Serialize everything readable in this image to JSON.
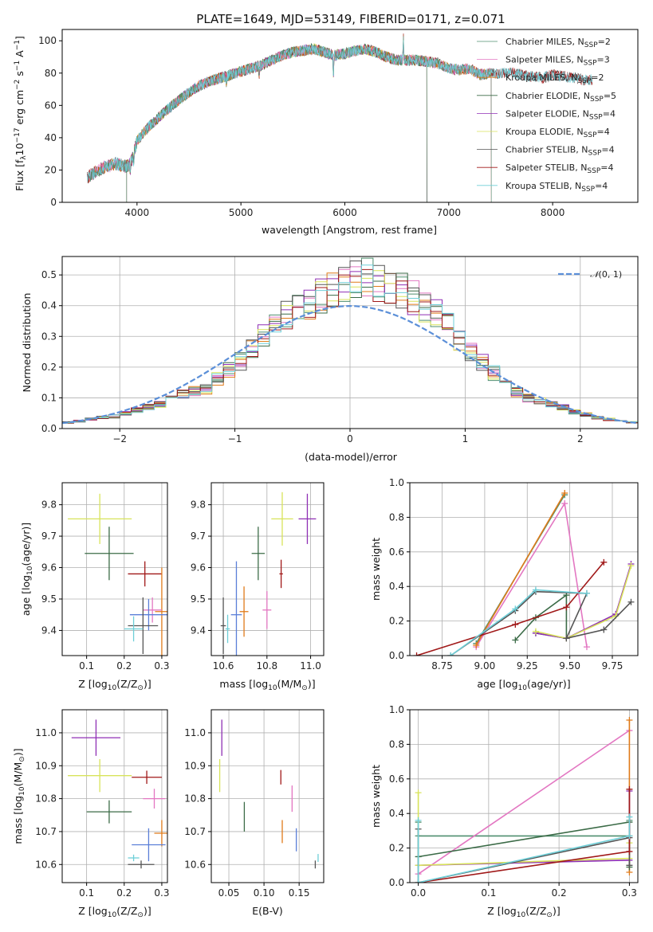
{
  "figure_title": "PLATE=1649, MJD=53149, FIBERID=0171, z=0.071",
  "colors": {
    "Chabrier MILES": "#4f8f6f",
    "Salpeter MILES": "#e377c2",
    "Kroupa MILES": "#e07b1a",
    "Chabrier ELODIE": "#3b6b47",
    "Salpeter ELODIE": "#8f2fb5",
    "Kroupa ELODIE": "#d8e35a",
    "Chabrier STELIB": "#555555",
    "Salpeter STELIB": "#a01818",
    "Kroupa STELIB": "#6ecfd8",
    "Extra": "#5b7fd8",
    "normal_curve": "#5b8fd8"
  },
  "chart_data": [
    {
      "id": "spectrum",
      "type": "line",
      "title": "PLATE=1649, MJD=53149, FIBERID=0171, z=0.071",
      "xlabel": "wavelength [Angstrom, rest frame]",
      "ylabel_parts": [
        "Flux [f",
        "λ",
        "10",
        "−17",
        " erg cm",
        "−2",
        " s",
        "−1",
        " A",
        "−1",
        "]"
      ],
      "xlim": [
        3280,
        8820
      ],
      "ylim": [
        0,
        107
      ],
      "xticks": [
        4000,
        5000,
        6000,
        7000,
        8000
      ],
      "yticks": [
        0,
        20,
        40,
        60,
        80,
        100
      ],
      "legend_position": "top-right",
      "continuum": {
        "x": [
          3520,
          3600,
          3700,
          3800,
          3900,
          3950,
          4000,
          4100,
          4200,
          4300,
          4400,
          4500,
          4600,
          4700,
          4800,
          4900,
          5000,
          5100,
          5200,
          5300,
          5400,
          5500,
          5600,
          5700,
          5800,
          5900,
          6000,
          6100,
          6200,
          6300,
          6400,
          6500,
          6600,
          6700,
          6800,
          6900,
          7000,
          7100,
          7200,
          7300,
          7400,
          7500,
          7600,
          7700,
          7800,
          7900,
          8000,
          8100,
          8200,
          8300,
          8380
        ],
        "y": [
          15,
          19,
          22,
          24,
          22,
          26,
          38,
          46,
          52,
          58,
          63,
          68,
          72,
          75,
          77,
          79,
          81,
          83,
          85,
          88,
          91,
          93,
          94,
          95,
          93,
          91,
          92,
          94,
          95,
          93,
          90,
          88,
          88,
          88,
          87,
          86,
          83,
          82,
          83,
          79,
          80,
          80,
          80,
          79,
          78,
          77,
          79,
          78,
          77,
          76,
          76
        ]
      },
      "features": [
        {
          "x": 5890,
          "depth": 14
        },
        {
          "x": 5175,
          "depth": 6
        },
        {
          "x": 4861,
          "depth": 4
        },
        {
          "x": 6563,
          "height": 14
        },
        {
          "x": 3934,
          "depth": 6
        },
        {
          "x": 3968,
          "depth": 5
        }
      ],
      "series": [
        {
          "name": "Chabrier MILES",
          "nssp": "2"
        },
        {
          "name": "Salpeter MILES",
          "nssp": "3"
        },
        {
          "name": "Kroupa MILES",
          "nssp": "2"
        },
        {
          "name": "Chabrier ELODIE",
          "nssp": "5"
        },
        {
          "name": "Salpeter ELODIE",
          "nssp": "4"
        },
        {
          "name": "Kroupa ELODIE",
          "nssp": "4"
        },
        {
          "name": "Chabrier STELIB",
          "nssp": "4"
        },
        {
          "name": "Salpeter STELIB",
          "nssp": "4"
        },
        {
          "name": "Kroupa STELIB",
          "nssp": "4"
        }
      ],
      "series_ranges": {
        "Chabrier MILES": [
          3540,
          7410
        ],
        "Salpeter MILES": [
          3540,
          7410
        ],
        "Kroupa MILES": [
          3540,
          7410
        ],
        "Chabrier ELODIE": [
          3900,
          6790
        ],
        "Salpeter ELODIE": [
          3900,
          6790
        ],
        "Kroupa ELODIE": [
          3900,
          6790
        ],
        "Chabrier STELIB": [
          3520,
          8380
        ],
        "Salpeter STELIB": [
          3520,
          8380
        ],
        "Kroupa STELIB": [
          3520,
          8380
        ]
      }
    },
    {
      "id": "residuals",
      "type": "line",
      "xlabel": "(data-model)/error",
      "ylabel": "Normed distribution",
      "xlim": [
        -2.5,
        2.5
      ],
      "ylim": [
        0,
        0.56
      ],
      "xticks": [
        -2,
        -1,
        0,
        1,
        2
      ],
      "yticks": [
        0.0,
        0.1,
        0.2,
        0.3,
        0.4,
        0.5
      ],
      "grid": true,
      "legend_position": "top-right",
      "normal_label_parts": [
        "𝒩",
        "(0, 1)"
      ],
      "bin_edges_start": -2.5,
      "bin_width": 0.1,
      "hist_envelope": [
        0.02,
        0.025,
        0.03,
        0.035,
        0.04,
        0.05,
        0.06,
        0.07,
        0.08,
        0.1,
        0.11,
        0.12,
        0.13,
        0.16,
        0.19,
        0.22,
        0.26,
        0.3,
        0.33,
        0.37,
        0.4,
        0.41,
        0.43,
        0.45,
        0.46,
        0.48,
        0.49,
        0.48,
        0.46,
        0.45,
        0.43,
        0.4,
        0.37,
        0.33,
        0.29,
        0.25,
        0.22,
        0.18,
        0.15,
        0.12,
        0.1,
        0.09,
        0.08,
        0.07,
        0.055,
        0.045,
        0.035,
        0.03,
        0.025,
        0.02
      ]
    },
    {
      "id": "age_vs_Z",
      "type": "scatter",
      "xlabel_parts": [
        "Z [log",
        "10",
        "(Z/Z",
        "⊙",
        ")]"
      ],
      "ylabel_parts": [
        "age  [log",
        "10",
        "(age/yr)]"
      ],
      "xlim": [
        0.035,
        0.315
      ],
      "ylim": [
        9.32,
        9.87
      ],
      "xticks": [
        0.1,
        0.2,
        0.3
      ],
      "yticks": [
        9.4,
        9.5,
        9.6,
        9.7,
        9.8
      ],
      "points": [
        {
          "s": "Kroupa ELODIE",
          "x": 0.135,
          "y": 9.755,
          "xerr": 0.085,
          "yerr": 0.08
        },
        {
          "s": "Chabrier ELODIE",
          "x": 0.16,
          "y": 9.645,
          "xerr": 0.065,
          "yerr": 0.085
        },
        {
          "s": "Salpeter STELIB",
          "x": 0.255,
          "y": 9.58,
          "xerr": 0.045,
          "yerr": 0.04
        },
        {
          "s": "Kroupa MILES",
          "x": 0.3,
          "y": 9.46,
          "xerr": 0.018,
          "yerr": 0.14
        },
        {
          "s": "Salpeter MILES",
          "x": 0.275,
          "y": 9.465,
          "xerr": 0.025,
          "yerr": 0.04
        },
        {
          "s": "Extra",
          "x": 0.265,
          "y": 9.45,
          "xerr": 0.05,
          "yerr": 0.05
        },
        {
          "s": "Chabrier STELIB",
          "x": 0.25,
          "y": 9.415,
          "xerr": 0.04,
          "yerr": 0.09
        },
        {
          "s": "Kroupa STELIB",
          "x": 0.225,
          "y": 9.405,
          "xerr": 0.025,
          "yerr": 0.04
        }
      ]
    },
    {
      "id": "age_vs_mass",
      "type": "scatter",
      "xlabel_parts": [
        "mass [log",
        "10",
        "(M/M",
        "⊙",
        ")]"
      ],
      "xlim": [
        10.545,
        11.06
      ],
      "ylim": [
        9.32,
        9.87
      ],
      "xticks": [
        10.6,
        10.8,
        11.0
      ],
      "yticks": [
        9.4,
        9.5,
        9.6,
        9.7,
        9.8
      ],
      "points": [
        {
          "s": "Salpeter ELODIE",
          "x": 10.985,
          "y": 9.755,
          "xerr": 0.04,
          "yerr": 0.08
        },
        {
          "s": "Kroupa ELODIE",
          "x": 10.87,
          "y": 9.755,
          "xerr": 0.05,
          "yerr": 0.085
        },
        {
          "s": "Chabrier ELODIE",
          "x": 10.76,
          "y": 9.645,
          "xerr": 0.03,
          "yerr": 0.085
        },
        {
          "s": "Salpeter STELIB",
          "x": 10.865,
          "y": 9.58,
          "xerr": 0.008,
          "yerr": 0.045
        },
        {
          "s": "Salpeter MILES",
          "x": 10.8,
          "y": 9.465,
          "xerr": 0.02,
          "yerr": 0.06
        },
        {
          "s": "Kroupa MILES",
          "x": 10.695,
          "y": 9.46,
          "xerr": 0.02,
          "yerr": 0.08
        },
        {
          "s": "Extra",
          "x": 10.66,
          "y": 9.45,
          "xerr": 0.025,
          "yerr": 0.17
        },
        {
          "s": "Chabrier STELIB",
          "x": 10.6,
          "y": 9.415,
          "xerr": 0.012,
          "yerr": 0.09
        },
        {
          "s": "Kroupa STELIB",
          "x": 10.62,
          "y": 9.405,
          "xerr": 0.01,
          "yerr": 0.045
        }
      ]
    },
    {
      "id": "weight_vs_age",
      "type": "line",
      "xlabel_parts": [
        "age  [log",
        "10",
        "(age/yr)]"
      ],
      "ylabel": "mass weight",
      "xlim": [
        8.56,
        9.9
      ],
      "ylim": [
        0,
        1.0
      ],
      "xticks": [
        8.75,
        9.0,
        9.25,
        9.5,
        9.75
      ],
      "yticks": [
        0.0,
        0.2,
        0.4,
        0.6,
        0.8,
        1.0
      ],
      "grid": true,
      "series": [
        {
          "s": "Chabrier MILES",
          "x": [
            8.95,
            9.47
          ],
          "y": [
            0.07,
            0.93
          ]
        },
        {
          "s": "Salpeter MILES",
          "x": [
            8.95,
            9.47,
            9.6
          ],
          "y": [
            0.05,
            0.88,
            0.05
          ]
        },
        {
          "s": "Kroupa MILES",
          "x": [
            8.95,
            9.47
          ],
          "y": [
            0.06,
            0.94
          ]
        },
        {
          "s": "Chabrier ELODIE",
          "x": [
            9.18,
            9.3,
            9.48,
            9.48,
            9.3
          ],
          "y": [
            0.09,
            0.22,
            0.35,
            0.1,
            0.13
          ]
        },
        {
          "s": "Salpeter ELODIE",
          "x": [
            9.3,
            9.48,
            9.77,
            9.86
          ],
          "y": [
            0.13,
            0.1,
            0.24,
            0.53
          ]
        },
        {
          "s": "Kroupa ELODIE",
          "x": [
            9.3,
            9.48,
            9.77,
            9.86
          ],
          "y": [
            0.14,
            0.1,
            0.23,
            0.52
          ]
        },
        {
          "s": "Chabrier STELIB",
          "x": [
            8.8,
            9.18,
            9.3,
            9.6,
            9.48,
            9.7,
            9.86
          ],
          "y": [
            0.0,
            0.26,
            0.37,
            0.36,
            0.1,
            0.15,
            0.31
          ]
        },
        {
          "s": "Salpeter STELIB",
          "x": [
            8.6,
            9.18,
            9.48,
            9.7
          ],
          "y": [
            0.0,
            0.18,
            0.28,
            0.54
          ]
        },
        {
          "s": "Kroupa STELIB",
          "x": [
            8.8,
            9.18,
            9.3,
            9.6
          ],
          "y": [
            0.0,
            0.27,
            0.38,
            0.36
          ]
        }
      ]
    },
    {
      "id": "mass_vs_Z",
      "type": "scatter",
      "xlabel_parts": [
        "Z [log",
        "10",
        "(Z/Z",
        "⊙",
        ")]"
      ],
      "ylabel_parts": [
        "mass [log",
        "10",
        "(M/M",
        "⊙",
        ")]"
      ],
      "xlim": [
        0.035,
        0.315
      ],
      "ylim": [
        10.545,
        11.07
      ],
      "xticks": [
        0.1,
        0.2,
        0.3
      ],
      "yticks": [
        10.6,
        10.7,
        10.8,
        10.9,
        11.0
      ],
      "points": [
        {
          "s": "Salpeter ELODIE",
          "x": 0.125,
          "y": 10.985,
          "xerr": 0.065,
          "yerr": 0.055
        },
        {
          "s": "Kroupa ELODIE",
          "x": 0.135,
          "y": 10.87,
          "xerr": 0.085,
          "yerr": 0.05
        },
        {
          "s": "Salpeter STELIB",
          "x": 0.26,
          "y": 10.865,
          "xerr": 0.04,
          "yerr": 0.02
        },
        {
          "s": "Salpeter MILES",
          "x": 0.28,
          "y": 10.8,
          "xerr": 0.03,
          "yerr": 0.03
        },
        {
          "s": "Chabrier ELODIE",
          "x": 0.16,
          "y": 10.76,
          "xerr": 0.06,
          "yerr": 0.035
        },
        {
          "s": "Kroupa MILES",
          "x": 0.3,
          "y": 10.695,
          "xerr": 0.02,
          "yerr": 0.04
        },
        {
          "s": "Extra",
          "x": 0.265,
          "y": 10.66,
          "xerr": 0.045,
          "yerr": 0.05
        },
        {
          "s": "Kroupa STELIB",
          "x": 0.225,
          "y": 10.62,
          "xerr": 0.015,
          "yerr": 0.01
        },
        {
          "s": "Chabrier STELIB",
          "x": 0.245,
          "y": 10.6,
          "xerr": 0.035,
          "yerr": 0.012
        }
      ]
    },
    {
      "id": "mass_vs_ebv",
      "type": "scatter",
      "xlabel": "E(B-V)",
      "xlim": [
        0.025,
        0.185
      ],
      "ylim": [
        10.545,
        11.07
      ],
      "xticks": [
        0.05,
        0.1,
        0.15
      ],
      "yticks": [
        10.6,
        10.7,
        10.8,
        10.9,
        11.0
      ],
      "points": [
        {
          "s": "Salpeter ELODIE",
          "x": 0.04,
          "y": 10.985,
          "yerr": 0.055
        },
        {
          "s": "Kroupa ELODIE",
          "x": 0.037,
          "y": 10.87,
          "yerr": 0.05
        },
        {
          "s": "Salpeter STELIB",
          "x": 0.124,
          "y": 10.865,
          "yerr": 0.022
        },
        {
          "s": "Salpeter MILES",
          "x": 0.14,
          "y": 10.8,
          "yerr": 0.04
        },
        {
          "s": "Chabrier ELODIE",
          "x": 0.072,
          "y": 10.745,
          "yerr": 0.045
        },
        {
          "s": "Kroupa MILES",
          "x": 0.126,
          "y": 10.7,
          "yerr": 0.035
        },
        {
          "s": "Extra",
          "x": 0.146,
          "y": 10.675,
          "yerr": 0.035
        },
        {
          "s": "Kroupa STELIB",
          "x": 0.177,
          "y": 10.62,
          "yerr": 0.012
        },
        {
          "s": "Chabrier STELIB",
          "x": 0.173,
          "y": 10.6,
          "yerr": 0.012
        }
      ]
    },
    {
      "id": "weight_vs_Z",
      "type": "line",
      "xlabel_parts": [
        "Z [log",
        "10",
        "(Z/Z",
        "⊙",
        ")]"
      ],
      "ylabel": "mass weight",
      "xlim": [
        -0.012,
        0.312
      ],
      "ylim": [
        0,
        1.0
      ],
      "xticks": [
        0.0,
        0.1,
        0.2,
        0.3
      ],
      "yticks": [
        0.0,
        0.2,
        0.4,
        0.6,
        0.8,
        1.0
      ],
      "grid": true,
      "series": [
        {
          "s": "Chabrier MILES",
          "x": [
            0.0,
            0.0,
            0.3,
            0.3
          ],
          "y": [
            0.35,
            0.27,
            0.27,
            0.36
          ]
        },
        {
          "s": "Salpeter MILES",
          "x": [
            0.0,
            0.3
          ],
          "y": [
            0.05,
            0.88
          ]
        },
        {
          "s": "Kroupa MILES",
          "x": [
            0.3,
            0.3
          ],
          "y": [
            0.06,
            0.94
          ]
        },
        {
          "s": "Chabrier ELODIE",
          "x": [
            0.0,
            0.3,
            0.3
          ],
          "y": [
            0.15,
            0.35,
            0.09
          ]
        },
        {
          "s": "Salpeter ELODIE",
          "x": [
            0.0,
            0.3,
            0.3
          ],
          "y": [
            0.1,
            0.13,
            0.53
          ]
        },
        {
          "s": "Kroupa ELODIE",
          "x": [
            0.0,
            0.0,
            0.3,
            0.3
          ],
          "y": [
            0.52,
            0.1,
            0.14,
            0.23
          ]
        },
        {
          "s": "Chabrier STELIB",
          "x": [
            0.0,
            0.0,
            0.3,
            0.3
          ],
          "y": [
            0.31,
            0.0,
            0.26,
            0.1
          ]
        },
        {
          "s": "Salpeter STELIB",
          "x": [
            0.0,
            0.3,
            0.3
          ],
          "y": [
            0.0,
            0.18,
            0.54
          ]
        },
        {
          "s": "Kroupa STELIB",
          "x": [
            0.0,
            0.0,
            0.3,
            0.3
          ],
          "y": [
            0.36,
            0.0,
            0.27,
            0.38
          ]
        }
      ]
    }
  ]
}
